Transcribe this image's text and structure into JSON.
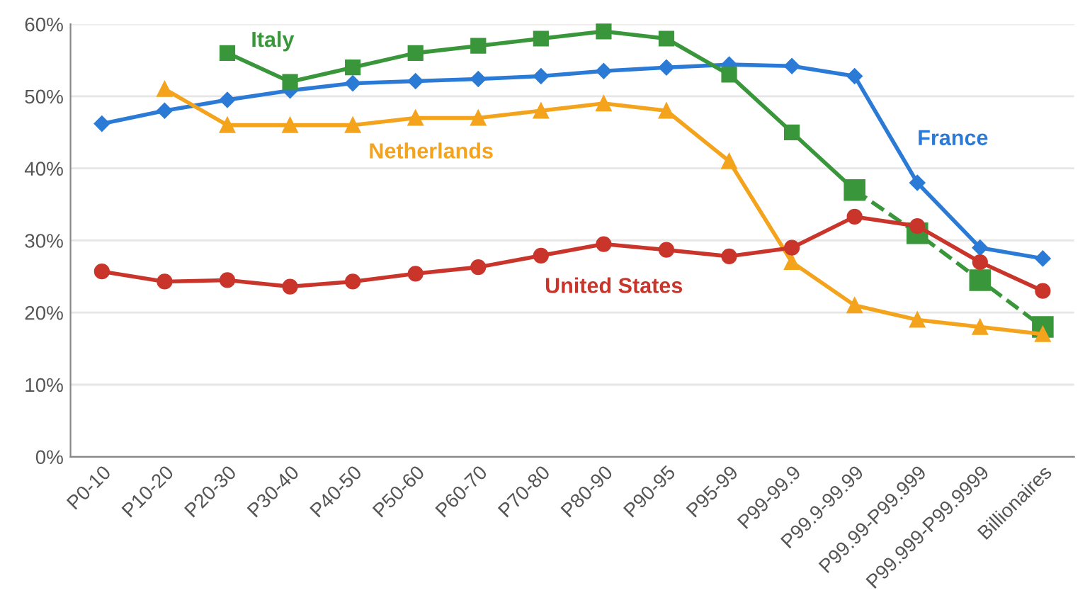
{
  "chart_data": {
    "type": "line",
    "categories": [
      "P0-10",
      "P10-20",
      "P20-30",
      "P30-40",
      "P40-50",
      "P50-60",
      "P60-70",
      "P70-80",
      "P80-90",
      "P90-95",
      "P95-99",
      "P99-99.9",
      "P99.9-99.99",
      "P99.99-P99.999",
      "P99.999-P99.9999",
      "Billionaires"
    ],
    "series": [
      {
        "name": "France",
        "color": "#2b7bd6",
        "marker": "diamond",
        "values": [
          46.2,
          48,
          49.5,
          50.8,
          51.8,
          52.1,
          52.4,
          52.8,
          53.5,
          54,
          54.4,
          54.2,
          52.8,
          38,
          29,
          27.5
        ]
      },
      {
        "name": "Italy",
        "color": "#3a963a",
        "marker": "square",
        "values": [
          null,
          null,
          56,
          52,
          54,
          56,
          57,
          58,
          59,
          58,
          53,
          45,
          37,
          null,
          null,
          null
        ]
      },
      {
        "color": "#3a963a",
        "marker": "square",
        "line_style": "dashed",
        "values": [
          null,
          null,
          null,
          null,
          null,
          null,
          null,
          null,
          null,
          null,
          null,
          null,
          37,
          31,
          24.5,
          18
        ]
      },
      {
        "name": "Netherlands",
        "color": "#f4a31c",
        "marker": "triangle",
        "values": [
          null,
          51,
          46,
          46,
          46,
          47,
          47,
          48,
          49,
          48,
          41,
          27,
          21,
          19,
          18,
          17
        ]
      },
      {
        "name": "United States",
        "color": "#c9352b",
        "marker": "circle",
        "values": [
          25.7,
          24.3,
          24.5,
          23.6,
          24.3,
          25.4,
          26.3,
          27.9,
          29.5,
          28.7,
          27.8,
          29,
          33.3,
          32,
          27,
          23
        ]
      }
    ],
    "ylim": [
      0,
      60
    ],
    "yticks": [
      {
        "value": 0,
        "label": "0%"
      },
      {
        "value": 10,
        "label": "10%"
      },
      {
        "value": 20,
        "label": "20%"
      },
      {
        "value": 30,
        "label": "30%"
      },
      {
        "value": 40,
        "label": "40%"
      },
      {
        "value": 50,
        "label": "50%"
      },
      {
        "value": 60,
        "label": "60%"
      }
    ],
    "grid": "y",
    "legend": false
  }
}
